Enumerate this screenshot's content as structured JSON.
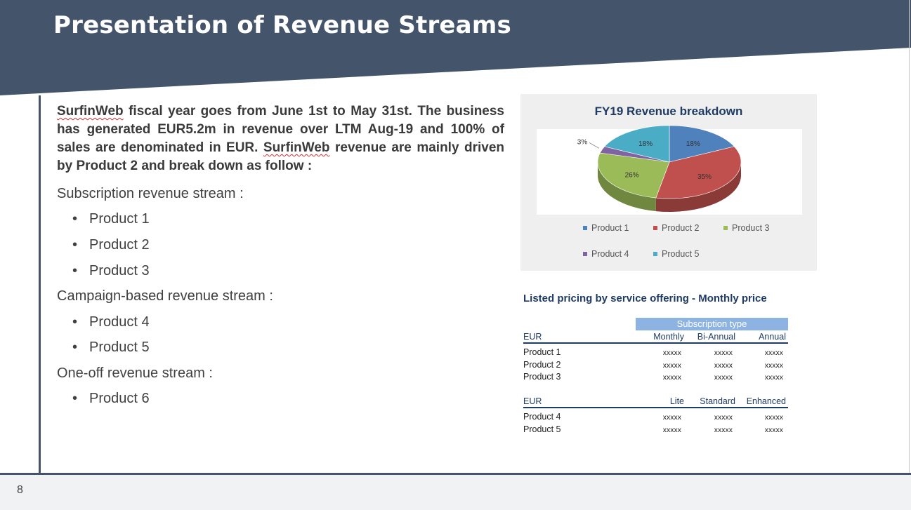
{
  "header": {
    "title": "Presentation of Revenue Streams",
    "band_color": "#44546a"
  },
  "intro": {
    "company": "SurfinWeb",
    "text_1": " fiscal year goes from June 1st to May 31st. The business has generated EUR5.2m in revenue over LTM Aug-19 and 100% of sales are denominated in EUR. ",
    "text_2": " revenue are mainly driven by Product 2 and break down as follow :"
  },
  "streams": [
    {
      "heading": "Subscription revenue stream :",
      "products": [
        "Product 1",
        "Product 2",
        "Product 3"
      ]
    },
    {
      "heading": "Campaign-based revenue stream :",
      "products": [
        "Product 4",
        "Product 5"
      ]
    },
    {
      "heading": "One-off revenue stream :",
      "products": [
        "Product 6"
      ]
    }
  ],
  "chart_data": {
    "type": "pie",
    "title": "FY19 Revenue breakdown",
    "categories": [
      "Product 1",
      "Product 2",
      "Product 3",
      "Product 4",
      "Product 5"
    ],
    "values": [
      18,
      35,
      26,
      3,
      18
    ],
    "labels": [
      "18%",
      "35%",
      "26%",
      "3%",
      "18%"
    ],
    "colors": [
      "#4f81bd",
      "#c0504d",
      "#9bbb59",
      "#8064a2",
      "#4bacc6"
    ],
    "legend_position": "bottom",
    "three_d": true
  },
  "pricing": {
    "title": "Listed pricing by service offering - Monthly price",
    "subscription_header": "Subscription type",
    "table1": {
      "currency": "EUR",
      "columns": [
        "Monthly",
        "Bi-Annual",
        "Annual"
      ],
      "rows": [
        {
          "name": "Product 1",
          "values": [
            "xxxxx",
            "xxxxx",
            "xxxxx"
          ]
        },
        {
          "name": "Product 2",
          "values": [
            "xxxxx",
            "xxxxx",
            "xxxxx"
          ]
        },
        {
          "name": "Product 3",
          "values": [
            "xxxxx",
            "xxxxx",
            "xxxxx"
          ]
        }
      ]
    },
    "table2": {
      "currency": "EUR",
      "columns": [
        "Lite",
        "Standard",
        "Enhanced"
      ],
      "rows": [
        {
          "name": "Product 4",
          "values": [
            "xxxxx",
            "xxxxx",
            "xxxxx"
          ]
        },
        {
          "name": "Product 5",
          "values": [
            "xxxxx",
            "xxxxx",
            "xxxxx"
          ]
        }
      ]
    }
  },
  "footer": {
    "page_number": "8"
  }
}
